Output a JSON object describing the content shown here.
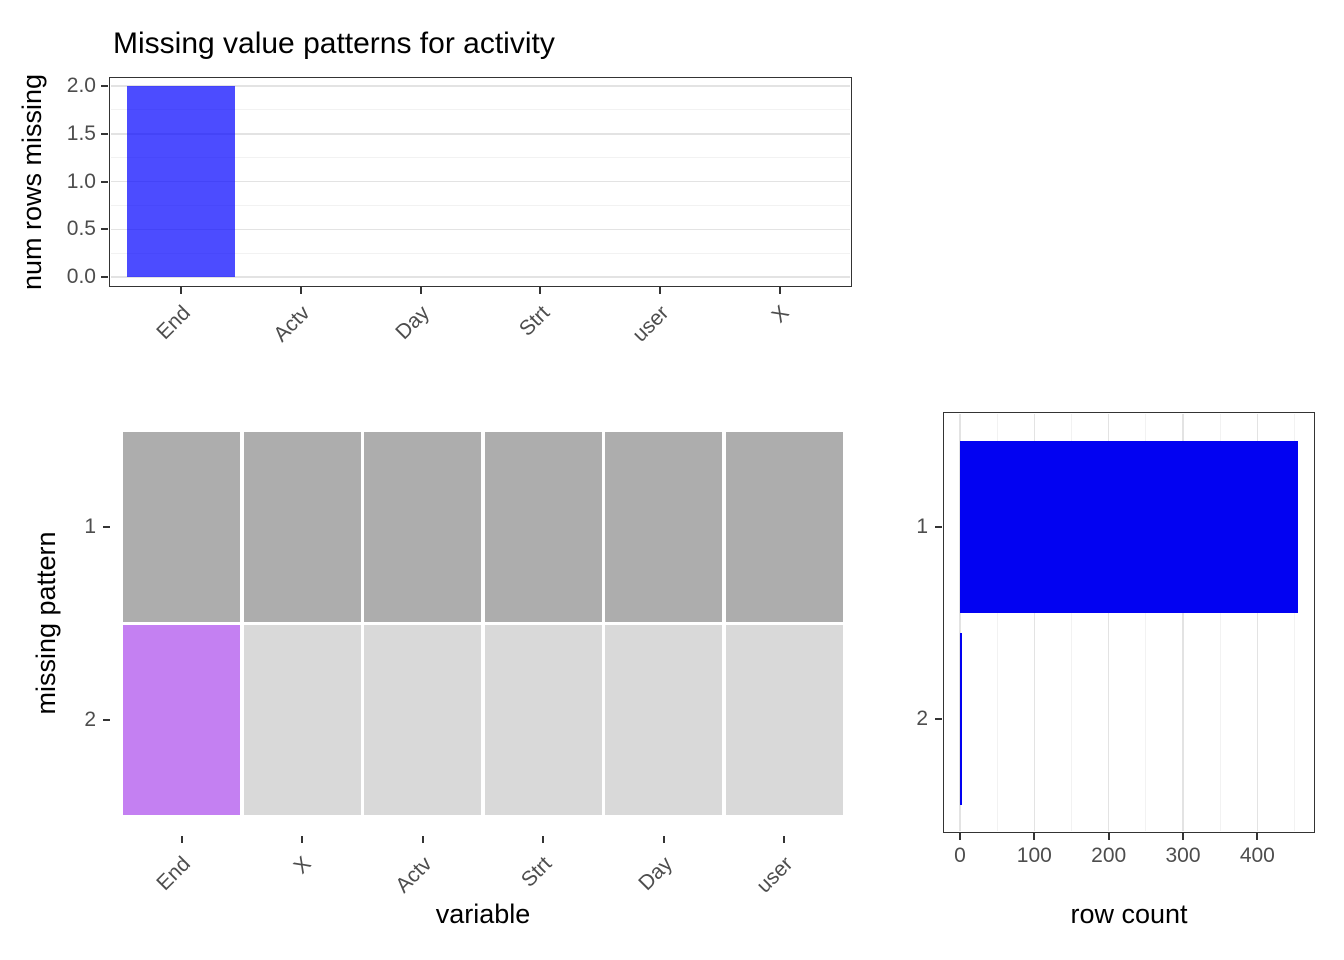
{
  "page": {
    "title": "Missing value patterns for activity"
  },
  "chart_data": [
    {
      "id": "missing-per-variable",
      "type": "bar",
      "title": "Missing value patterns for activity",
      "categories": [
        "End",
        "Actv",
        "Day",
        "Strt",
        "user",
        "X"
      ],
      "values": [
        2,
        0,
        0,
        0,
        0,
        0
      ],
      "xlabel": "",
      "ylabel": "num rows missing",
      "ytick_values": [
        0,
        0.5,
        1,
        1.5,
        2
      ],
      "ytick_labels": [
        "0.0",
        "0.5",
        "1.0",
        "1.5",
        "2.0"
      ],
      "ylim": [
        0,
        2
      ],
      "grid": "horizontal major+minor, light gray on white",
      "legend": "none",
      "bar_color": "rgba(0,0,255,0.7)"
    },
    {
      "id": "missing-pattern-grid",
      "type": "heatmap",
      "categories": [
        "End",
        "X",
        "Actv",
        "Strt",
        "Day",
        "user"
      ],
      "rows": [
        "1",
        "2"
      ],
      "cells": [
        [
          "observed",
          "observed",
          "observed",
          "observed",
          "observed",
          "observed"
        ],
        [
          "missing",
          "observed",
          "observed",
          "observed",
          "observed",
          "observed"
        ]
      ],
      "xlabel": "variable",
      "ylabel": "missing pattern",
      "grid": "none",
      "legend": "none",
      "colors": {
        "missing": "#C480F2",
        "observed_pattern1": "#ADADAD",
        "observed_pattern2": "#D9D9D9"
      }
    },
    {
      "id": "pattern-row-count",
      "type": "bar",
      "orientation": "horizontal",
      "categories": [
        "1",
        "2"
      ],
      "values": [
        454,
        2
      ],
      "xlabel": "row count",
      "ylabel": "",
      "xtick_values": [
        0,
        100,
        200,
        300,
        400
      ],
      "xtick_labels": [
        "0",
        "100",
        "200",
        "300",
        "400"
      ],
      "xlim": [
        0,
        478
      ],
      "grid": "vertical major+minor every 50, light gray on white",
      "legend": "none",
      "bar_color": "#0202F2"
    }
  ]
}
